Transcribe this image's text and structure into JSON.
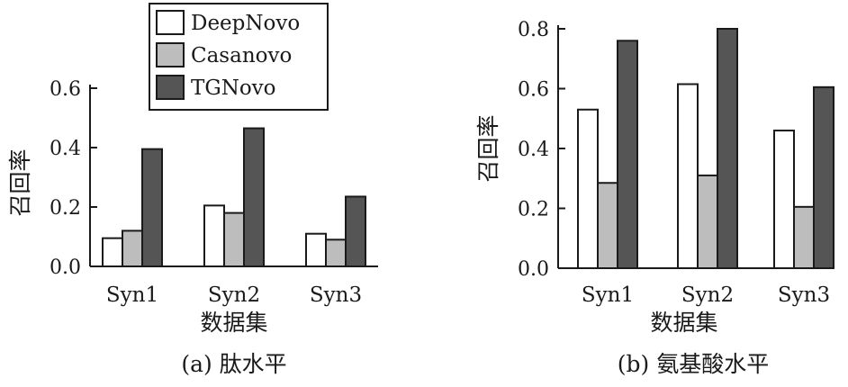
{
  "colors": {
    "DeepNovo": "#ffffff",
    "Casanovo": "#bdbdbd",
    "TGNovo": "#555555",
    "outline": "#1a1a1a"
  },
  "legend": {
    "entries": [
      "DeepNovo",
      "Casanovo",
      "TGNovo"
    ],
    "placement": "top-center of left panel"
  },
  "chart_data": [
    {
      "type": "bar",
      "caption": "(a) 肽水平",
      "xlabel": "数据集",
      "ylabel": "召回率",
      "categories": [
        "Syn1",
        "Syn2",
        "Syn3"
      ],
      "ylim": [
        0,
        0.6
      ],
      "yticks": [
        0.0,
        0.2,
        0.4,
        0.6
      ],
      "ytick_labels": [
        "0.0",
        "0.2",
        "0.4",
        "0.6"
      ],
      "grid": false,
      "series": [
        {
          "name": "DeepNovo",
          "values": [
            0.095,
            0.205,
            0.11
          ]
        },
        {
          "name": "Casanovo",
          "values": [
            0.12,
            0.18,
            0.09
          ]
        },
        {
          "name": "TGNovo",
          "values": [
            0.395,
            0.465,
            0.235
          ]
        }
      ]
    },
    {
      "type": "bar",
      "caption": "(b) 氨基酸水平",
      "xlabel": "数据集",
      "ylabel": "召回率",
      "categories": [
        "Syn1",
        "Syn2",
        "Syn3"
      ],
      "ylim": [
        0,
        0.8
      ],
      "yticks": [
        0.0,
        0.2,
        0.4,
        0.6,
        0.8
      ],
      "ytick_labels": [
        "0.0",
        "0.2",
        "0.4",
        "0.6",
        "0.8"
      ],
      "grid": false,
      "series": [
        {
          "name": "DeepNovo",
          "values": [
            0.53,
            0.615,
            0.46
          ]
        },
        {
          "name": "Casanovo",
          "values": [
            0.285,
            0.31,
            0.205
          ]
        },
        {
          "name": "TGNovo",
          "values": [
            0.76,
            0.8,
            0.605
          ]
        }
      ]
    }
  ]
}
